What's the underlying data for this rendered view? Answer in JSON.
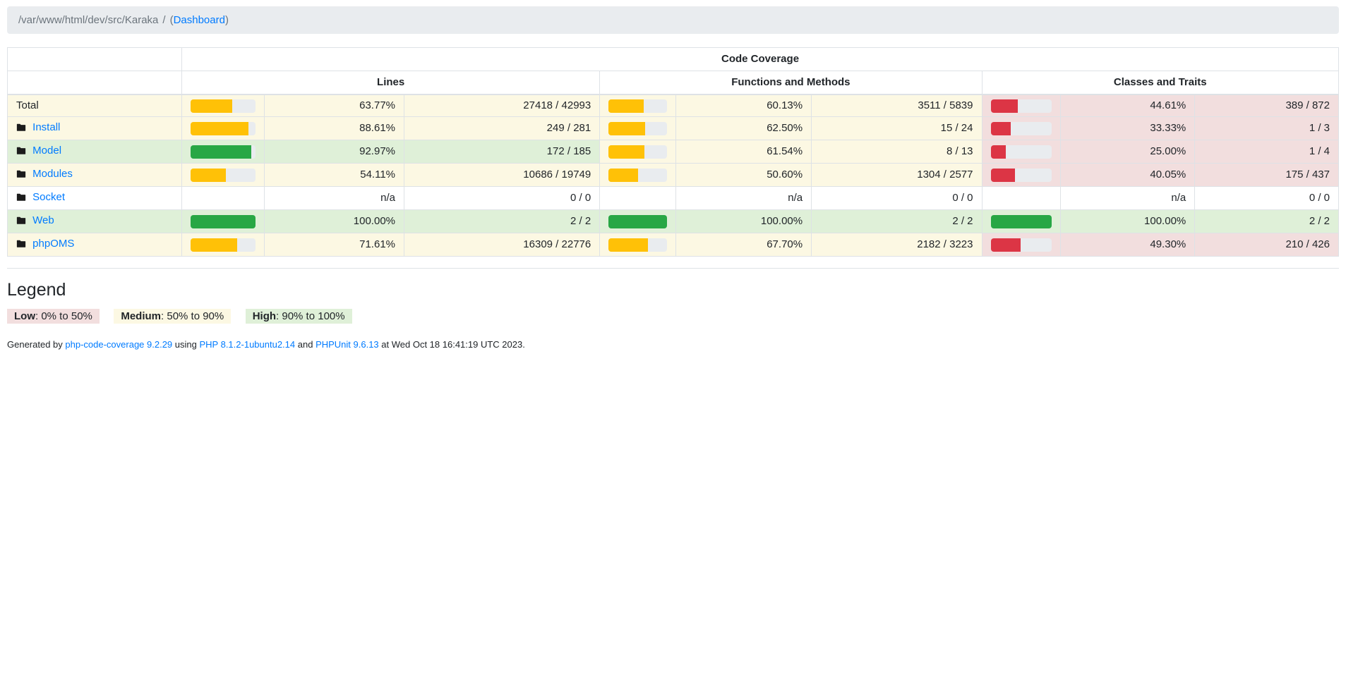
{
  "breadcrumb": {
    "path": "/var/www/html/dev/src/Karaka",
    "separator": "/",
    "active_prefix": "(",
    "dashboard_link": "Dashboard",
    "active_suffix": ")"
  },
  "table": {
    "title": "Code Coverage",
    "section_headers": {
      "lines": "Lines",
      "functions": "Functions and Methods",
      "classes": "Classes and Traits"
    },
    "rows": [
      {
        "name": "Total",
        "link": false,
        "lines": {
          "level": "warning",
          "percent": 63.77,
          "percent_label": "63.77%",
          "ratio": "27418 / 42993"
        },
        "functions": {
          "level": "warning",
          "percent": 60.13,
          "percent_label": "60.13%",
          "ratio": "3511 / 5839"
        },
        "classes": {
          "level": "danger",
          "percent": 44.61,
          "percent_label": "44.61%",
          "ratio": "389 / 872"
        }
      },
      {
        "name": "Install",
        "link": true,
        "lines": {
          "level": "warning",
          "percent": 88.61,
          "percent_label": "88.61%",
          "ratio": "249 / 281"
        },
        "functions": {
          "level": "warning",
          "percent": 62.5,
          "percent_label": "62.50%",
          "ratio": "15 / 24"
        },
        "classes": {
          "level": "danger",
          "percent": 33.33,
          "percent_label": "33.33%",
          "ratio": "1 / 3"
        }
      },
      {
        "name": "Model",
        "link": true,
        "lines": {
          "level": "success",
          "percent": 92.97,
          "percent_label": "92.97%",
          "ratio": "172 / 185"
        },
        "functions": {
          "level": "warning",
          "percent": 61.54,
          "percent_label": "61.54%",
          "ratio": "8 / 13"
        },
        "classes": {
          "level": "danger",
          "percent": 25.0,
          "percent_label": "25.00%",
          "ratio": "1 / 4"
        }
      },
      {
        "name": "Modules",
        "link": true,
        "lines": {
          "level": "warning",
          "percent": 54.11,
          "percent_label": "54.11%",
          "ratio": "10686 / 19749"
        },
        "functions": {
          "level": "warning",
          "percent": 50.6,
          "percent_label": "50.60%",
          "ratio": "1304 / 2577"
        },
        "classes": {
          "level": "danger",
          "percent": 40.05,
          "percent_label": "40.05%",
          "ratio": "175 / 437"
        }
      },
      {
        "name": "Socket",
        "link": true,
        "lines": {
          "level": null,
          "percent": null,
          "percent_label": "n/a",
          "ratio": "0 / 0"
        },
        "functions": {
          "level": null,
          "percent": null,
          "percent_label": "n/a",
          "ratio": "0 / 0"
        },
        "classes": {
          "level": null,
          "percent": null,
          "percent_label": "n/a",
          "ratio": "0 / 0"
        }
      },
      {
        "name": "Web",
        "link": true,
        "lines": {
          "level": "success",
          "percent": 100,
          "percent_label": "100.00%",
          "ratio": "2 / 2"
        },
        "functions": {
          "level": "success",
          "percent": 100,
          "percent_label": "100.00%",
          "ratio": "2 / 2"
        },
        "classes": {
          "level": "success",
          "percent": 100,
          "percent_label": "100.00%",
          "ratio": "2 / 2"
        }
      },
      {
        "name": "phpOMS",
        "link": true,
        "lines": {
          "level": "warning",
          "percent": 71.61,
          "percent_label": "71.61%",
          "ratio": "16309 / 22776"
        },
        "functions": {
          "level": "warning",
          "percent": 67.7,
          "percent_label": "67.70%",
          "ratio": "2182 / 3223"
        },
        "classes": {
          "level": "danger",
          "percent": 49.3,
          "percent_label": "49.30%",
          "ratio": "210 / 426"
        }
      }
    ]
  },
  "legend": {
    "title": "Legend",
    "items": [
      {
        "label": "Low",
        "range": ": 0% to 50%",
        "level": "danger"
      },
      {
        "label": "Medium",
        "range": ": 50% to 90%",
        "level": "warning"
      },
      {
        "label": "High",
        "range": ": 90% to 100%",
        "level": "success"
      }
    ]
  },
  "footer": {
    "prefix": "Generated by ",
    "coverage_link": "php-code-coverage 9.2.29",
    "mid1": " using ",
    "php_link": "PHP 8.1.2-1ubuntu2.14",
    "mid2": " and ",
    "phpunit_link": "PHPUnit 9.6.13",
    "suffix": " at Wed Oct 18 16:41:19 UTC 2023."
  },
  "colors": {
    "link": "#007bff",
    "breadcrumb_bg": "#e9ecef",
    "border": "#dee2e6",
    "track": "#e9ecef",
    "warning_bg": "#fcf8e3",
    "success_bg": "#dff0d8",
    "danger_bg": "#f2dede",
    "bar_warning": "#ffc107",
    "bar_success": "#28a745",
    "bar_danger": "#dc3545"
  }
}
